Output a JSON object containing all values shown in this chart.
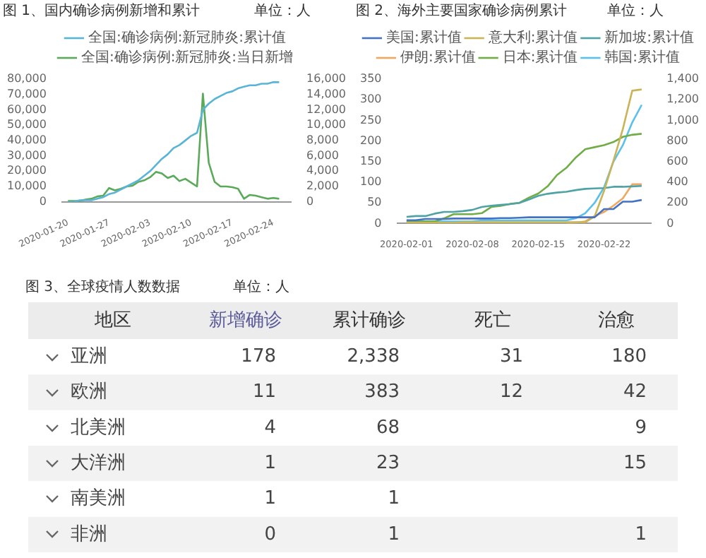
{
  "chart_data": [
    {
      "type": "line",
      "title": "图 1、国内确诊病例新增和累计",
      "annotations": [
        "单位：人"
      ],
      "legend": "top",
      "x": [
        "2020-01-20",
        "2020-01-21",
        "2020-01-22",
        "2020-01-23",
        "2020-01-24",
        "2020-01-25",
        "2020-01-26",
        "2020-01-27",
        "2020-01-28",
        "2020-01-29",
        "2020-01-30",
        "2020-01-31",
        "2020-02-01",
        "2020-02-02",
        "2020-02-03",
        "2020-02-04",
        "2020-02-05",
        "2020-02-06",
        "2020-02-07",
        "2020-02-08",
        "2020-02-09",
        "2020-02-10",
        "2020-02-11",
        "2020-02-12",
        "2020-02-13",
        "2020-02-14",
        "2020-02-15",
        "2020-02-16",
        "2020-02-17",
        "2020-02-18",
        "2020-02-19",
        "2020-02-20",
        "2020-02-21",
        "2020-02-22",
        "2020-02-23",
        "2020-02-24",
        "2020-02-25"
      ],
      "series": [
        {
          "name": "全国:确诊病例:新冠肺炎:累计值",
          "color": "#5ab4d6",
          "values": [
            0,
            0,
            1000,
            1000,
            1000,
            2000,
            3000,
            5000,
            6000,
            8000,
            10000,
            12000,
            14000,
            17000,
            20000,
            24000,
            28000,
            31000,
            35000,
            37000,
            40000,
            43000,
            45000,
            60000,
            64000,
            67000,
            69000,
            71000,
            72000,
            74000,
            75000,
            76000,
            76000,
            77000,
            77000,
            78000,
            78000
          ]
        },
        {
          "name": "全国:确诊病例:新冠肺炎:当日新增",
          "color": "#5aaa5a",
          "axis": "y2",
          "values": [
            100,
            100,
            100,
            300,
            400,
            700,
            800,
            1800,
            1500,
            1700,
            2000,
            2100,
            2600,
            2800,
            3200,
            3900,
            3700,
            3100,
            3400,
            2700,
            3000,
            2500,
            2000,
            14100,
            5100,
            2600,
            2000,
            2000,
            1900,
            1700,
            400,
            900,
            800,
            600,
            400,
            500,
            400
          ]
        }
      ],
      "xlim": [
        "2020-01-19",
        "2020-02-27"
      ],
      "xticks": [
        "2020-01-20",
        "2020-01-27",
        "2020-02-03",
        "2020-02-10",
        "2020-02-17",
        "2020-02-24"
      ],
      "ylim": [
        0,
        80000
      ],
      "yticks": [
        0,
        {
          "value": 10000,
          "label": "10,000"
        },
        {
          "value": 20000,
          "label": "20,000"
        },
        {
          "value": 30000,
          "label": "30,000"
        },
        {
          "value": 40000,
          "label": "40,000"
        },
        {
          "value": 50000,
          "label": "50,000"
        },
        {
          "value": 60000,
          "label": "60,000"
        },
        {
          "value": 70000,
          "label": "70,000"
        },
        {
          "value": 80000,
          "label": "80,000"
        }
      ],
      "y2lim": [
        0,
        16000
      ],
      "y2ticks": [
        0,
        {
          "value": 2000,
          "label": "2,000"
        },
        {
          "value": 4000,
          "label": "4,000"
        },
        {
          "value": 6000,
          "label": "6,000"
        },
        {
          "value": 8000,
          "label": "8,000"
        },
        {
          "value": 10000,
          "label": "10,000"
        },
        {
          "value": 12000,
          "label": "12,000"
        },
        {
          "value": 14000,
          "label": "14,000"
        },
        {
          "value": 16000,
          "label": "16,000"
        }
      ]
    },
    {
      "type": "line",
      "title": "图 2、海外主要国家确诊病例累计",
      "annotations": [
        "单位：人"
      ],
      "legend": "top",
      "x": [
        "2020-02-01",
        "2020-02-02",
        "2020-02-03",
        "2020-02-04",
        "2020-02-05",
        "2020-02-06",
        "2020-02-07",
        "2020-02-08",
        "2020-02-09",
        "2020-02-10",
        "2020-02-11",
        "2020-02-12",
        "2020-02-13",
        "2020-02-14",
        "2020-02-15",
        "2020-02-16",
        "2020-02-17",
        "2020-02-18",
        "2020-02-19",
        "2020-02-20",
        "2020-02-21",
        "2020-02-22",
        "2020-02-23",
        "2020-02-24",
        "2020-02-25",
        "2020-02-26"
      ],
      "series": [
        {
          "name": "美国:累计值",
          "color": "#4472c4",
          "values": [
            8,
            8,
            11,
            11,
            11,
            12,
            12,
            12,
            12,
            12,
            13,
            13,
            14,
            15,
            15,
            15,
            15,
            15,
            15,
            15,
            15,
            35,
            35,
            53,
            53,
            57
          ]
        },
        {
          "name": "意大利:累计值",
          "color": "#c9b458",
          "values": [
            2,
            2,
            2,
            2,
            2,
            2,
            3,
            3,
            3,
            3,
            3,
            3,
            3,
            3,
            3,
            3,
            3,
            3,
            3,
            3,
            17,
            79,
            152,
            229,
            322,
            325
          ]
        },
        {
          "name": "新加坡:累计值",
          "color": "#4fa3a5",
          "values": [
            16,
            18,
            18,
            24,
            28,
            28,
            30,
            33,
            40,
            43,
            45,
            47,
            50,
            58,
            67,
            72,
            75,
            77,
            81,
            84,
            85,
            86,
            89,
            89,
            90,
            91
          ]
        },
        {
          "name": "伊朗:累计值",
          "color": "#f0a860",
          "values": [
            null,
            null,
            null,
            null,
            null,
            null,
            null,
            null,
            null,
            null,
            null,
            null,
            null,
            null,
            null,
            null,
            null,
            0,
            2,
            5,
            18,
            28,
            43,
            61,
            95,
            95
          ]
        },
        {
          "name": "日本:累计值",
          "color": "#70ad47",
          "axis": "y2",
          "values": [
            20,
            20,
            20,
            20,
            50,
            90,
            90,
            90,
            100,
            160,
            170,
            190,
            200,
            250,
            290,
            360,
            470,
            540,
            640,
            720,
            740,
            760,
            790,
            840,
            860,
            870
          ]
        },
        {
          "name": "韩国:累计值",
          "color": "#5bc0eb",
          "axis": "y2",
          "values": [
            10,
            20,
            20,
            20,
            20,
            20,
            20,
            20,
            30,
            30,
            30,
            30,
            30,
            30,
            30,
            30,
            30,
            30,
            50,
            100,
            200,
            350,
            600,
            760,
            980,
            1150
          ]
        }
      ],
      "xlim": [
        "2020-01-31",
        "2020-02-27"
      ],
      "xticks": [
        "2020-02-01",
        "2020-02-08",
        "2020-02-15",
        "2020-02-22"
      ],
      "ylim": [
        0,
        350
      ],
      "yticks": [
        0,
        50,
        100,
        150,
        200,
        250,
        300,
        350
      ],
      "y2lim": [
        0,
        1400
      ],
      "y2ticks": [
        0,
        200,
        400,
        600,
        800,
        {
          "value": 1000,
          "label": "1,000"
        },
        {
          "value": 1200,
          "label": "1,200"
        },
        {
          "value": 1400,
          "label": "1,400"
        }
      ]
    },
    {
      "type": "heatmap",
      "title": "图 3、全球疫情人数数据",
      "annotations": [
        "单位：人"
      ],
      "ylabel": "地区",
      "data_labels": true,
      "categories": [
        "新增确诊",
        "累计确诊",
        "死亡",
        "治愈"
      ],
      "y_categories": [
        "亚洲",
        "欧洲",
        "北美洲",
        "大洋洲",
        "南美洲",
        "非洲"
      ],
      "cells": [
        [
          178,
          2338,
          31,
          180
        ],
        [
          11,
          383,
          12,
          42
        ],
        [
          4,
          68,
          null,
          9
        ],
        [
          1,
          23,
          null,
          15
        ],
        [
          1,
          1,
          null,
          null
        ],
        [
          0,
          1,
          null,
          1
        ]
      ],
      "cell_labels": [
        [
          "178",
          "2,338",
          "31",
          "180"
        ],
        [
          "11",
          "383",
          "12",
          "42"
        ],
        [
          "4",
          "68",
          null,
          "9"
        ],
        [
          "1",
          "23",
          null,
          "15"
        ],
        [
          "1",
          "1",
          null,
          null
        ],
        [
          "0",
          "1",
          null,
          "1"
        ]
      ]
    }
  ]
}
